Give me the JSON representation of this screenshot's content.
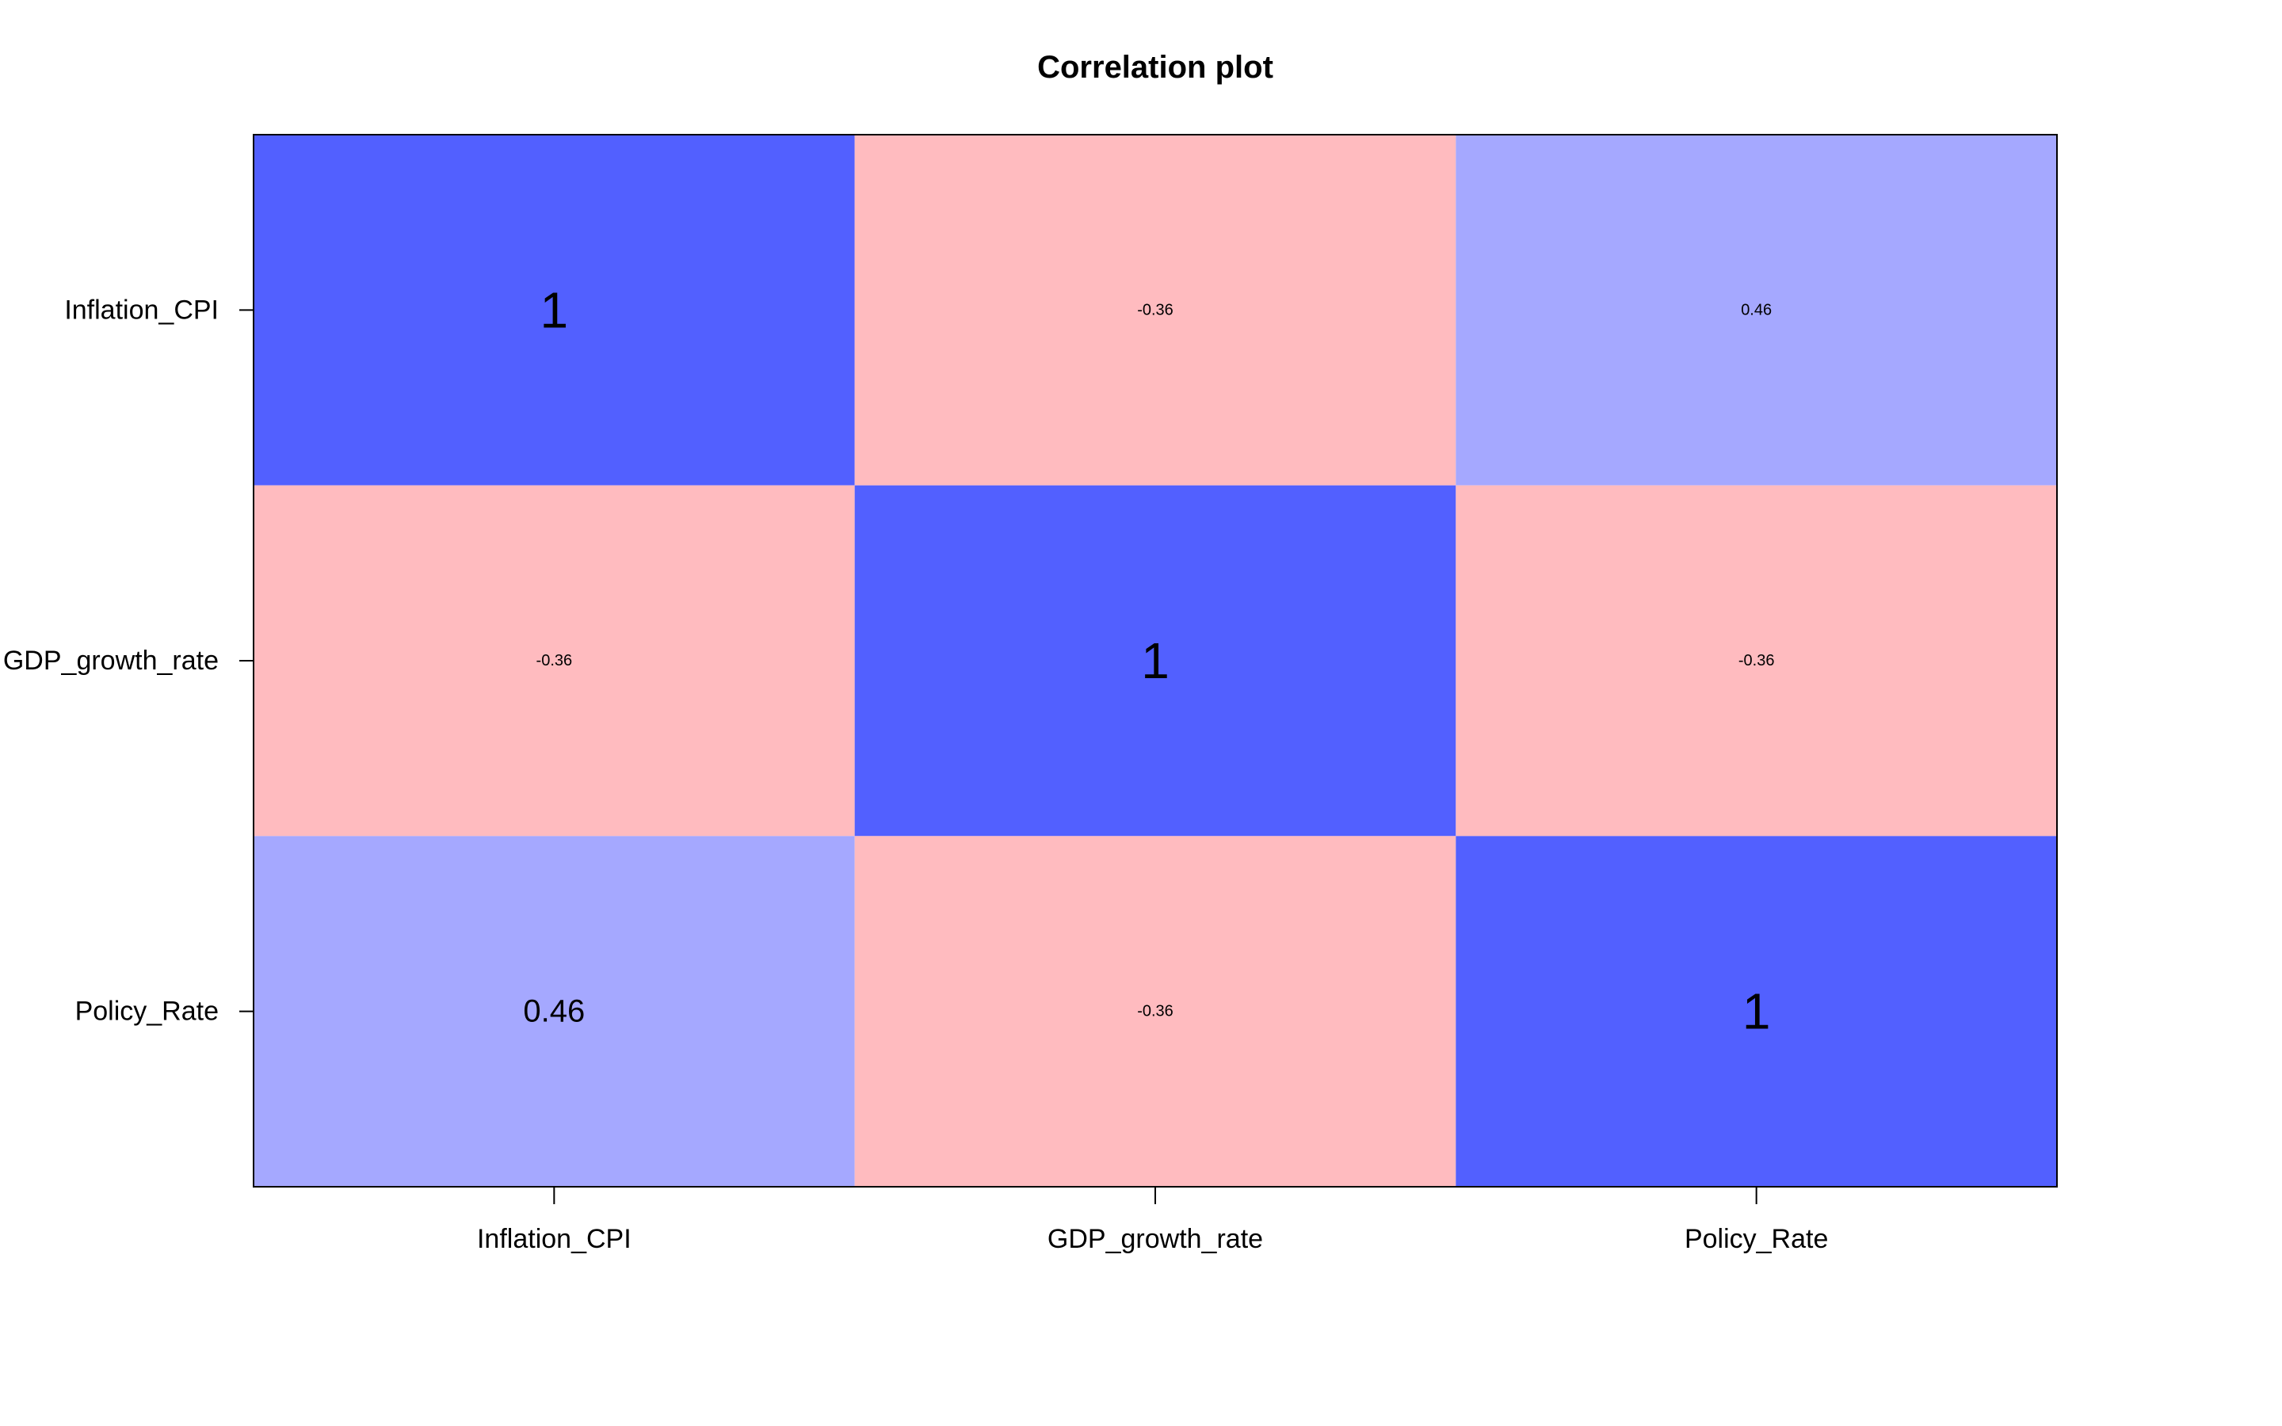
{
  "chart_data": {
    "type": "heatmap",
    "title": "Correlation plot",
    "variables": [
      "Inflation_CPI",
      "GDP_growth_rate",
      "Policy_Rate"
    ],
    "rows": [
      "Inflation_CPI",
      "GDP_growth_rate",
      "Policy_Rate"
    ],
    "columns": [
      "Inflation_CPI",
      "GDP_growth_rate",
      "Policy_Rate"
    ],
    "values": [
      [
        1,
        -0.36,
        0.46
      ],
      [
        -0.36,
        1,
        -0.36
      ],
      [
        0.46,
        -0.36,
        1
      ]
    ],
    "cell_labels": [
      [
        "1",
        "-0.36",
        "0.46"
      ],
      [
        "-0.36",
        "1",
        "-0.36"
      ],
      [
        "0.46",
        "-0.36",
        "1"
      ]
    ],
    "colors": {
      "strong_positive": "#5260ff",
      "moderate_positive": "#a5a8ff",
      "negative": "#ffbbbf",
      "frame": "#000000",
      "background": "#ffffff"
    },
    "xlabel": "",
    "ylabel": "",
    "grid": false,
    "legend": "none"
  }
}
